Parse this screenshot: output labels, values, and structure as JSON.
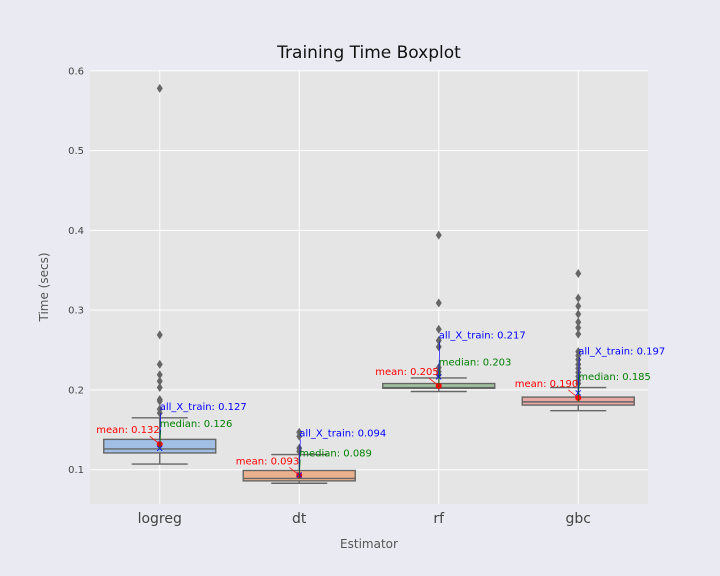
{
  "chart_data": {
    "type": "box",
    "title": "Training Time Boxplot",
    "xlabel": "Estimator",
    "ylabel": "Time (secs)",
    "ylim": [
      0.057,
      0.601
    ],
    "yticks": [
      0.1,
      0.2,
      0.3,
      0.4,
      0.5,
      0.6
    ],
    "ytick_labels": [
      "0.1",
      "0.2",
      "0.3",
      "0.4",
      "0.5",
      "0.6"
    ],
    "grid": true,
    "categories": [
      "logreg",
      "dt",
      "rf",
      "gbc"
    ],
    "boxes": [
      {
        "name": "logreg",
        "color": "#a1bfe4",
        "whisker_low": 0.107,
        "q1": 0.121,
        "median": 0.126,
        "q3": 0.138,
        "whisker_high": 0.165,
        "outliers": [
          0.578,
          0.269,
          0.232,
          0.219,
          0.211,
          0.203,
          0.188,
          0.186,
          0.176,
          0.171
        ],
        "mean": 0.132,
        "all_X_train": 0.127,
        "mean_label": "mean: 0.132",
        "median_label": "median: 0.126",
        "all_label": "all_X_train: 0.127"
      },
      {
        "name": "dt",
        "color": "#eab18e",
        "whisker_low": 0.083,
        "q1": 0.086,
        "median": 0.089,
        "q3": 0.099,
        "whisker_high": 0.119,
        "outliers": [
          0.147,
          0.142,
          0.127,
          0.123
        ],
        "mean": 0.093,
        "all_X_train": 0.094,
        "mean_label": "mean: 0.093",
        "median_label": "median: 0.089",
        "all_label": "all_X_train: 0.094"
      },
      {
        "name": "rf",
        "color": "#9fc39d",
        "whisker_low": 0.198,
        "q1": 0.202,
        "median": 0.203,
        "q3": 0.208,
        "whisker_high": 0.215,
        "outliers": [
          0.394,
          0.309,
          0.276,
          0.262,
          0.254,
          0.228,
          0.223,
          0.219
        ],
        "mean": 0.205,
        "all_X_train": 0.217,
        "mean_label": "mean: 0.205",
        "median_label": "median: 0.203",
        "all_label": "all_X_train: 0.217"
      },
      {
        "name": "gbc",
        "color": "#e7a7a5",
        "whisker_low": 0.174,
        "q1": 0.181,
        "median": 0.185,
        "q3": 0.191,
        "whisker_high": 0.203,
        "outliers": [
          0.346,
          0.315,
          0.305,
          0.295,
          0.285,
          0.278,
          0.27,
          0.248,
          0.243,
          0.238,
          0.232,
          0.227,
          0.222,
          0.217,
          0.212,
          0.208
        ],
        "mean": 0.19,
        "all_X_train": 0.197,
        "mean_label": "mean: 0.190",
        "median_label": "median: 0.185",
        "all_label": "all_X_train: 0.197"
      }
    ],
    "annotation_colors": {
      "mean": "#ff0000",
      "median": "#008000",
      "all_X_train": "#0000ff"
    }
  }
}
